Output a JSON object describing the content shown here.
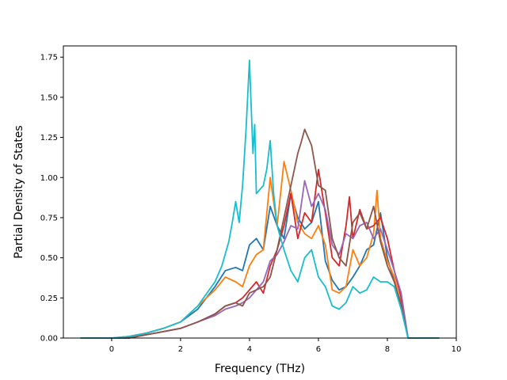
{
  "chart_data": {
    "type": "line",
    "title": "",
    "xlabel": "Frequency (THz)",
    "ylabel": "Partial Density of States",
    "xlim": [
      -1.4,
      10
    ],
    "ylim": [
      0,
      1.82
    ],
    "xticks": [
      0,
      2,
      4,
      6,
      8,
      10
    ],
    "yticks": [
      0.0,
      0.25,
      0.5,
      0.75,
      1.0,
      1.25,
      1.5,
      1.75
    ],
    "xtick_labels": [
      "0",
      "2",
      "4",
      "6",
      "8",
      "10"
    ],
    "ytick_labels": [
      "0.00",
      "0.25",
      "0.50",
      "0.75",
      "1.00",
      "1.25",
      "1.50",
      "1.75"
    ],
    "grid": false,
    "legend": "none",
    "series": [
      {
        "color": "#1f77b4",
        "x": [
          -0.9,
          0.0,
          0.5,
          1.0,
          1.5,
          2.0,
          2.5,
          3.0,
          3.3,
          3.6,
          3.8,
          4.0,
          4.2,
          4.4,
          4.6,
          4.8,
          5.0,
          5.2,
          5.4,
          5.6,
          5.8,
          6.0,
          6.2,
          6.4,
          6.6,
          6.8,
          7.0,
          7.2,
          7.4,
          7.6,
          7.8,
          8.0,
          8.2,
          8.4,
          8.6,
          9.5
        ],
        "y": [
          0.0,
          0.0,
          0.01,
          0.03,
          0.06,
          0.1,
          0.18,
          0.32,
          0.42,
          0.44,
          0.42,
          0.58,
          0.62,
          0.55,
          0.82,
          0.7,
          0.62,
          0.9,
          0.75,
          0.68,
          0.72,
          0.85,
          0.48,
          0.36,
          0.3,
          0.32,
          0.38,
          0.45,
          0.55,
          0.58,
          0.78,
          0.5,
          0.35,
          0.22,
          0.0,
          0.0
        ]
      },
      {
        "color": "#ff7f0e",
        "x": [
          -0.9,
          0.0,
          0.5,
          1.0,
          1.5,
          2.0,
          2.5,
          3.0,
          3.3,
          3.6,
          3.8,
          4.0,
          4.2,
          4.4,
          4.6,
          4.7,
          4.8,
          5.0,
          5.2,
          5.4,
          5.6,
          5.8,
          6.0,
          6.2,
          6.4,
          6.6,
          6.8,
          7.0,
          7.2,
          7.4,
          7.6,
          7.7,
          7.8,
          8.0,
          8.2,
          8.4,
          8.6,
          9.5
        ],
        "y": [
          0.0,
          0.0,
          0.01,
          0.03,
          0.06,
          0.1,
          0.2,
          0.3,
          0.38,
          0.35,
          0.32,
          0.45,
          0.52,
          0.55,
          1.0,
          0.85,
          0.7,
          1.1,
          0.92,
          0.72,
          0.65,
          0.62,
          0.7,
          0.58,
          0.3,
          0.28,
          0.32,
          0.55,
          0.45,
          0.5,
          0.65,
          0.92,
          0.62,
          0.48,
          0.38,
          0.2,
          0.0,
          0.0
        ]
      },
      {
        "color": "#d62728",
        "x": [
          -0.9,
          0.0,
          0.5,
          1.0,
          1.5,
          2.0,
          2.5,
          3.0,
          3.3,
          3.6,
          3.8,
          4.0,
          4.2,
          4.4,
          4.6,
          4.8,
          5.0,
          5.2,
          5.4,
          5.6,
          5.8,
          6.0,
          6.2,
          6.4,
          6.6,
          6.8,
          6.9,
          7.0,
          7.2,
          7.4,
          7.6,
          7.8,
          8.0,
          8.2,
          8.4,
          8.6,
          9.5
        ],
        "y": [
          0.0,
          0.0,
          0.0,
          0.02,
          0.04,
          0.06,
          0.1,
          0.15,
          0.2,
          0.22,
          0.25,
          0.3,
          0.35,
          0.28,
          0.45,
          0.55,
          0.7,
          0.9,
          0.62,
          0.78,
          0.72,
          1.05,
          0.78,
          0.5,
          0.45,
          0.7,
          0.88,
          0.62,
          0.8,
          0.68,
          0.7,
          0.75,
          0.62,
          0.42,
          0.25,
          0.0,
          0.0
        ]
      },
      {
        "color": "#9467bd",
        "x": [
          -0.9,
          0.0,
          0.5,
          1.0,
          1.5,
          2.0,
          2.5,
          3.0,
          3.3,
          3.6,
          3.8,
          4.0,
          4.2,
          4.4,
          4.6,
          4.8,
          5.0,
          5.2,
          5.4,
          5.6,
          5.8,
          6.0,
          6.2,
          6.4,
          6.6,
          6.8,
          7.0,
          7.2,
          7.4,
          7.6,
          7.8,
          8.0,
          8.2,
          8.4,
          8.6,
          9.5
        ],
        "y": [
          0.0,
          0.0,
          0.0,
          0.02,
          0.04,
          0.06,
          0.1,
          0.14,
          0.18,
          0.2,
          0.22,
          0.25,
          0.3,
          0.35,
          0.48,
          0.52,
          0.6,
          0.7,
          0.68,
          0.98,
          0.82,
          0.9,
          0.8,
          0.58,
          0.52,
          0.65,
          0.62,
          0.7,
          0.72,
          0.62,
          0.68,
          0.55,
          0.42,
          0.28,
          0.0,
          0.0
        ]
      },
      {
        "color": "#8c564b",
        "x": [
          -0.9,
          0.0,
          0.5,
          1.0,
          1.5,
          2.0,
          2.5,
          3.0,
          3.3,
          3.6,
          3.8,
          4.0,
          4.2,
          4.4,
          4.6,
          4.8,
          5.0,
          5.2,
          5.4,
          5.5,
          5.6,
          5.8,
          6.0,
          6.2,
          6.4,
          6.6,
          6.8,
          7.0,
          7.2,
          7.4,
          7.6,
          7.8,
          8.0,
          8.2,
          8.4,
          8.6,
          9.5
        ],
        "y": [
          0.0,
          0.0,
          0.0,
          0.02,
          0.04,
          0.06,
          0.1,
          0.15,
          0.2,
          0.22,
          0.2,
          0.28,
          0.3,
          0.32,
          0.38,
          0.55,
          0.75,
          0.95,
          1.15,
          1.22,
          1.3,
          1.2,
          0.95,
          0.92,
          0.62,
          0.5,
          0.45,
          0.72,
          0.78,
          0.68,
          0.82,
          0.6,
          0.45,
          0.35,
          0.2,
          0.0,
          0.0
        ]
      },
      {
        "color": "#17becf",
        "x": [
          -0.9,
          0.0,
          0.5,
          1.0,
          1.5,
          2.0,
          2.5,
          3.0,
          3.2,
          3.4,
          3.5,
          3.6,
          3.7,
          3.8,
          3.9,
          4.0,
          4.1,
          4.15,
          4.2,
          4.4,
          4.5,
          4.6,
          4.7,
          4.8,
          5.0,
          5.2,
          5.4,
          5.6,
          5.8,
          6.0,
          6.2,
          6.4,
          6.6,
          6.8,
          7.0,
          7.2,
          7.4,
          7.6,
          7.8,
          8.0,
          8.2,
          8.4,
          8.6,
          9.5
        ],
        "y": [
          0.0,
          0.0,
          0.01,
          0.03,
          0.06,
          0.1,
          0.2,
          0.35,
          0.45,
          0.6,
          0.72,
          0.85,
          0.72,
          0.95,
          1.3,
          1.73,
          1.15,
          1.33,
          0.9,
          0.95,
          1.05,
          1.23,
          0.9,
          0.7,
          0.55,
          0.42,
          0.35,
          0.5,
          0.55,
          0.38,
          0.32,
          0.2,
          0.18,
          0.22,
          0.32,
          0.28,
          0.3,
          0.38,
          0.35,
          0.35,
          0.32,
          0.18,
          0.0,
          0.0
        ]
      }
    ]
  }
}
